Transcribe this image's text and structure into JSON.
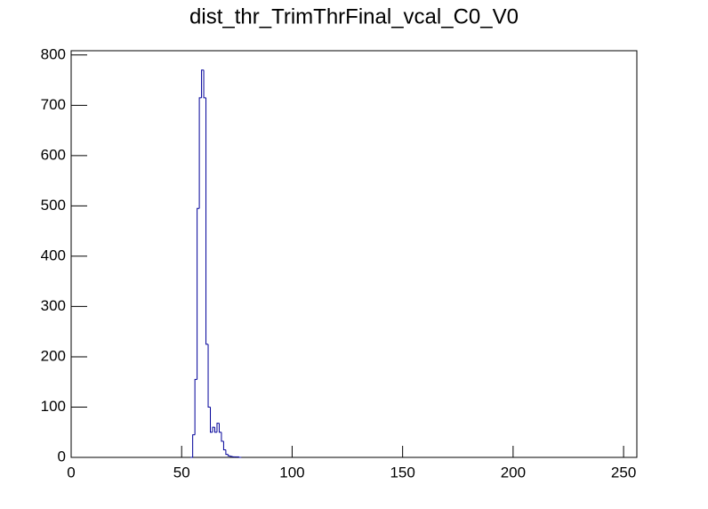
{
  "chart_data": {
    "type": "histogram",
    "title": "dist_thr_TrimThrFinal_vcal_C0_V0",
    "bins": [
      54,
      55,
      56,
      57,
      58,
      59,
      60,
      61,
      62,
      63,
      64,
      65,
      66,
      67,
      68,
      69,
      70,
      71,
      72,
      73,
      74,
      75,
      76,
      77
    ],
    "counts": [
      0,
      45,
      155,
      495,
      715,
      770,
      715,
      225,
      100,
      50,
      60,
      50,
      68,
      50,
      32,
      15,
      6,
      3,
      2,
      1,
      1,
      1,
      0
    ],
    "color": "#000099",
    "xlim": [
      0,
      256
    ],
    "xticks": [
      0,
      50,
      100,
      150,
      200,
      250
    ],
    "ylim": [
      0,
      808.5
    ],
    "yticks": [
      0,
      100,
      200,
      300,
      400,
      500,
      600,
      700,
      800
    ],
    "grid": false
  }
}
